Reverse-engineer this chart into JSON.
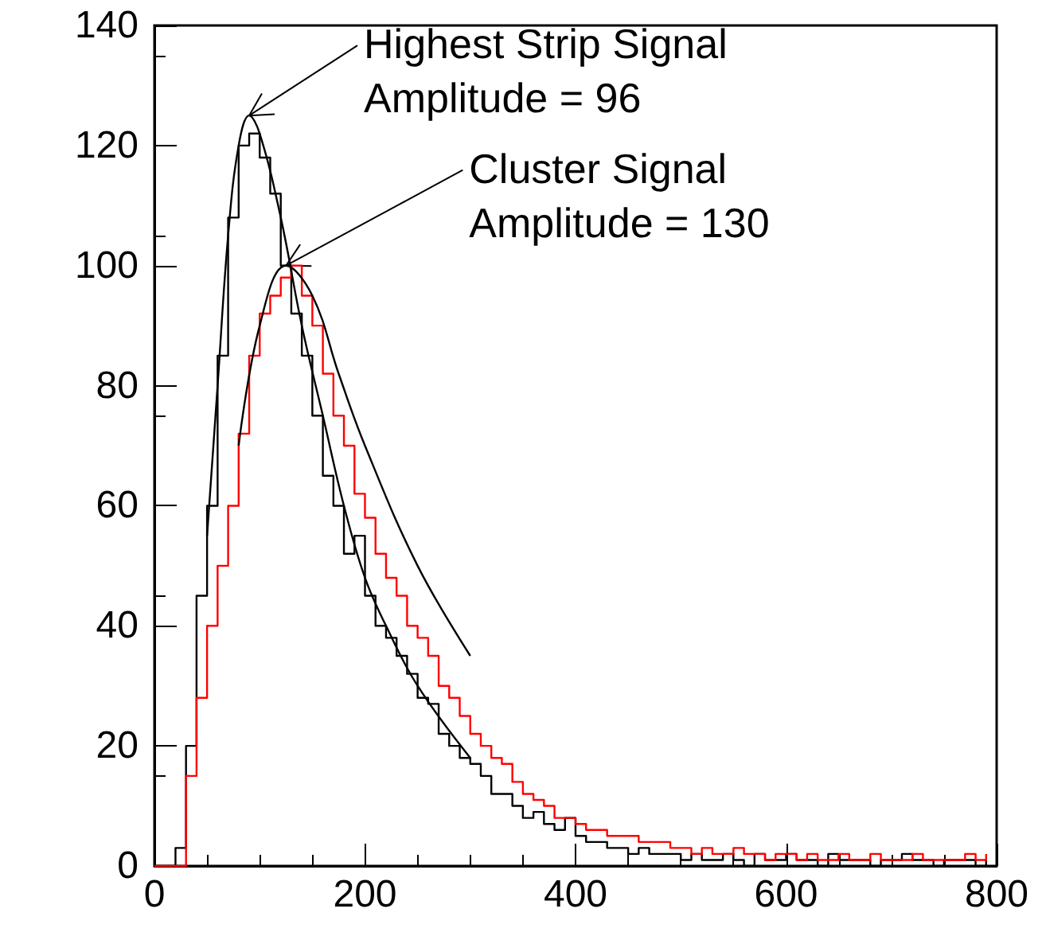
{
  "chart_data": {
    "type": "step",
    "x": [
      0,
      10,
      20,
      30,
      40,
      50,
      60,
      70,
      80,
      90,
      100,
      110,
      120,
      130,
      140,
      150,
      160,
      170,
      180,
      190,
      200,
      210,
      220,
      230,
      240,
      250,
      260,
      270,
      280,
      290,
      300,
      310,
      320,
      330,
      340,
      350,
      360,
      370,
      380,
      390,
      400,
      410,
      420,
      430,
      440,
      450,
      460,
      470,
      480,
      490,
      500,
      510,
      520,
      530,
      540,
      550,
      560,
      570,
      580,
      590,
      600,
      610,
      620,
      630,
      640,
      650,
      660,
      670,
      680,
      690,
      700,
      710,
      720,
      730,
      740,
      750,
      760,
      770,
      780,
      790
    ],
    "series": [
      {
        "color": "#000000",
        "values": [
          0,
          0,
          3,
          20,
          45,
          60,
          85,
          108,
          120,
          122,
          118,
          112,
          100,
          92,
          85,
          75,
          65,
          60,
          52,
          55,
          45,
          40,
          38,
          35,
          32,
          28,
          27,
          22,
          20,
          18,
          17,
          15,
          12,
          12,
          10,
          8,
          9,
          7,
          6,
          8,
          5,
          4,
          4,
          3,
          3,
          2,
          3,
          2,
          2,
          2,
          1,
          2,
          1,
          1,
          2,
          1,
          0,
          2,
          1,
          1,
          2,
          1,
          1,
          0,
          2,
          1,
          1,
          1,
          0,
          1,
          1,
          2,
          1,
          1,
          0,
          1,
          1,
          1,
          0,
          1
        ]
      },
      {
        "color": "#ff0000",
        "values": [
          0,
          0,
          0,
          15,
          28,
          40,
          50,
          60,
          72,
          85,
          92,
          95,
          98,
          100,
          95,
          90,
          82,
          75,
          70,
          62,
          58,
          52,
          48,
          45,
          40,
          38,
          35,
          30,
          28,
          25,
          22,
          20,
          18,
          17,
          14,
          12,
          11,
          10,
          8,
          8,
          7,
          6,
          6,
          5,
          5,
          5,
          4,
          4,
          4,
          3,
          3,
          2,
          3,
          2,
          2,
          3,
          2,
          2,
          1,
          2,
          2,
          1,
          2,
          1,
          1,
          2,
          1,
          1,
          2,
          1,
          1,
          1,
          2,
          1,
          1,
          1,
          1,
          2,
          1,
          2
        ]
      },
      {
        "type": "line",
        "color": "#000000",
        "x": [
          50,
          60,
          70,
          80,
          90,
          100,
          120,
          140,
          160,
          180,
          200,
          220,
          250,
          300
        ],
        "values": [
          55,
          80,
          105,
          120,
          125,
          122,
          108,
          90,
          75,
          60,
          48,
          40,
          30,
          18
        ]
      },
      {
        "type": "line",
        "color": "#000000",
        "x": [
          80,
          100,
          125,
          150,
          175,
          200,
          250,
          300
        ],
        "values": [
          70,
          90,
          100,
          95,
          82,
          70,
          50,
          35
        ]
      }
    ],
    "xlim": [
      0,
      800
    ],
    "xticks": [
      0,
      200,
      400,
      600,
      800
    ],
    "ylim": [
      0,
      140
    ],
    "yticks": [
      0,
      20,
      40,
      60,
      80,
      100,
      120,
      140
    ],
    "annotations": [
      {
        "text": "Highest Strip Signal\nAmplitude = 96",
        "x": 90,
        "y": 125
      },
      {
        "text": "Cluster Signal\nAmplitude = 130",
        "x": 125,
        "y": 100
      }
    ]
  }
}
